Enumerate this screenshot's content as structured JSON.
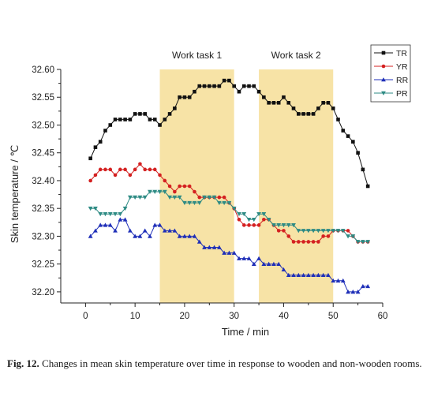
{
  "chart_data": {
    "type": "line",
    "xlabel": "Time / min",
    "ylabel": "Skin temperature / ℃",
    "xlim": [
      -5,
      60
    ],
    "ylim": [
      32.18,
      32.6
    ],
    "xticks": [
      "0",
      "10",
      "20",
      "30",
      "40",
      "50",
      "60"
    ],
    "yticks": [
      "32.20",
      "32.25",
      "32.30",
      "32.35",
      "32.40",
      "32.45",
      "32.50",
      "32.55",
      "32.60"
    ],
    "legend_position": "top-right",
    "shaded_regions": [
      {
        "label": "Work task 1",
        "x_start": 15,
        "x_end": 30
      },
      {
        "label": "Work task 2",
        "x_start": 35,
        "x_end": 50
      }
    ],
    "x": [
      1,
      2,
      3,
      4,
      5,
      6,
      7,
      8,
      9,
      10,
      11,
      12,
      13,
      14,
      15,
      16,
      17,
      18,
      19,
      20,
      21,
      22,
      23,
      24,
      25,
      26,
      27,
      28,
      29,
      30,
      31,
      32,
      33,
      34,
      35,
      36,
      37,
      38,
      39,
      40,
      41,
      42,
      43,
      44,
      45,
      46,
      47,
      48,
      49,
      50,
      51,
      52,
      53,
      54,
      55,
      56,
      57
    ],
    "series": [
      {
        "name": "TR",
        "color": "#111111",
        "marker": "square",
        "values": [
          32.44,
          32.46,
          32.47,
          32.49,
          32.5,
          32.51,
          32.51,
          32.51,
          32.51,
          32.52,
          32.52,
          32.52,
          32.51,
          32.51,
          32.5,
          32.51,
          32.52,
          32.53,
          32.55,
          32.55,
          32.55,
          32.56,
          32.57,
          32.57,
          32.57,
          32.57,
          32.57,
          32.58,
          32.58,
          32.57,
          32.56,
          32.57,
          32.57,
          32.57,
          32.56,
          32.55,
          32.54,
          32.54,
          32.54,
          32.55,
          32.54,
          32.53,
          32.52,
          32.52,
          32.52,
          32.52,
          32.53,
          32.54,
          32.54,
          32.53,
          32.51,
          32.49,
          32.48,
          32.47,
          32.45,
          32.42,
          32.39
        ]
      },
      {
        "name": "YR",
        "color": "#d42020",
        "marker": "circle",
        "values": [
          32.4,
          32.41,
          32.42,
          32.42,
          32.42,
          32.41,
          32.42,
          32.42,
          32.41,
          32.42,
          32.43,
          32.42,
          32.42,
          32.42,
          32.41,
          32.4,
          32.39,
          32.38,
          32.39,
          32.39,
          32.39,
          32.38,
          32.37,
          32.37,
          32.37,
          32.37,
          32.37,
          32.37,
          32.36,
          32.35,
          32.33,
          32.32,
          32.32,
          32.32,
          32.32,
          32.33,
          32.33,
          32.32,
          32.31,
          32.31,
          32.3,
          32.29,
          32.29,
          32.29,
          32.29,
          32.29,
          32.29,
          32.3,
          32.3,
          32.31,
          32.31,
          32.31,
          32.31,
          32.3,
          32.29,
          32.29,
          32.29
        ]
      },
      {
        "name": "RR",
        "color": "#1f2fb8",
        "marker": "triangle-up",
        "values": [
          32.3,
          32.31,
          32.32,
          32.32,
          32.32,
          32.31,
          32.33,
          32.33,
          32.31,
          32.3,
          32.3,
          32.31,
          32.3,
          32.32,
          32.32,
          32.31,
          32.31,
          32.31,
          32.3,
          32.3,
          32.3,
          32.3,
          32.29,
          32.28,
          32.28,
          32.28,
          32.28,
          32.27,
          32.27,
          32.27,
          32.26,
          32.26,
          32.26,
          32.25,
          32.26,
          32.25,
          32.25,
          32.25,
          32.25,
          32.24,
          32.23,
          32.23,
          32.23,
          32.23,
          32.23,
          32.23,
          32.23,
          32.23,
          32.23,
          32.22,
          32.22,
          32.22,
          32.2,
          32.2,
          32.2,
          32.21,
          32.21
        ]
      },
      {
        "name": "PR",
        "color": "#2e8b84",
        "marker": "triangle-down",
        "values": [
          32.35,
          32.35,
          32.34,
          32.34,
          32.34,
          32.34,
          32.34,
          32.35,
          32.37,
          32.37,
          32.37,
          32.37,
          32.38,
          32.38,
          32.38,
          32.38,
          32.37,
          32.37,
          32.37,
          32.36,
          32.36,
          32.36,
          32.36,
          32.37,
          32.37,
          32.37,
          32.36,
          32.36,
          32.36,
          32.35,
          32.34,
          32.34,
          32.33,
          32.33,
          32.34,
          32.34,
          32.33,
          32.32,
          32.32,
          32.32,
          32.32,
          32.32,
          32.31,
          32.31,
          32.31,
          32.31,
          32.31,
          32.31,
          32.31,
          32.31,
          32.31,
          32.31,
          32.3,
          32.3,
          32.29,
          32.29,
          32.29
        ]
      }
    ]
  },
  "caption": {
    "label": "Fig. 12.",
    "text": " Changes in mean skin temperature over time in response to wooden and non-wooden rooms."
  }
}
